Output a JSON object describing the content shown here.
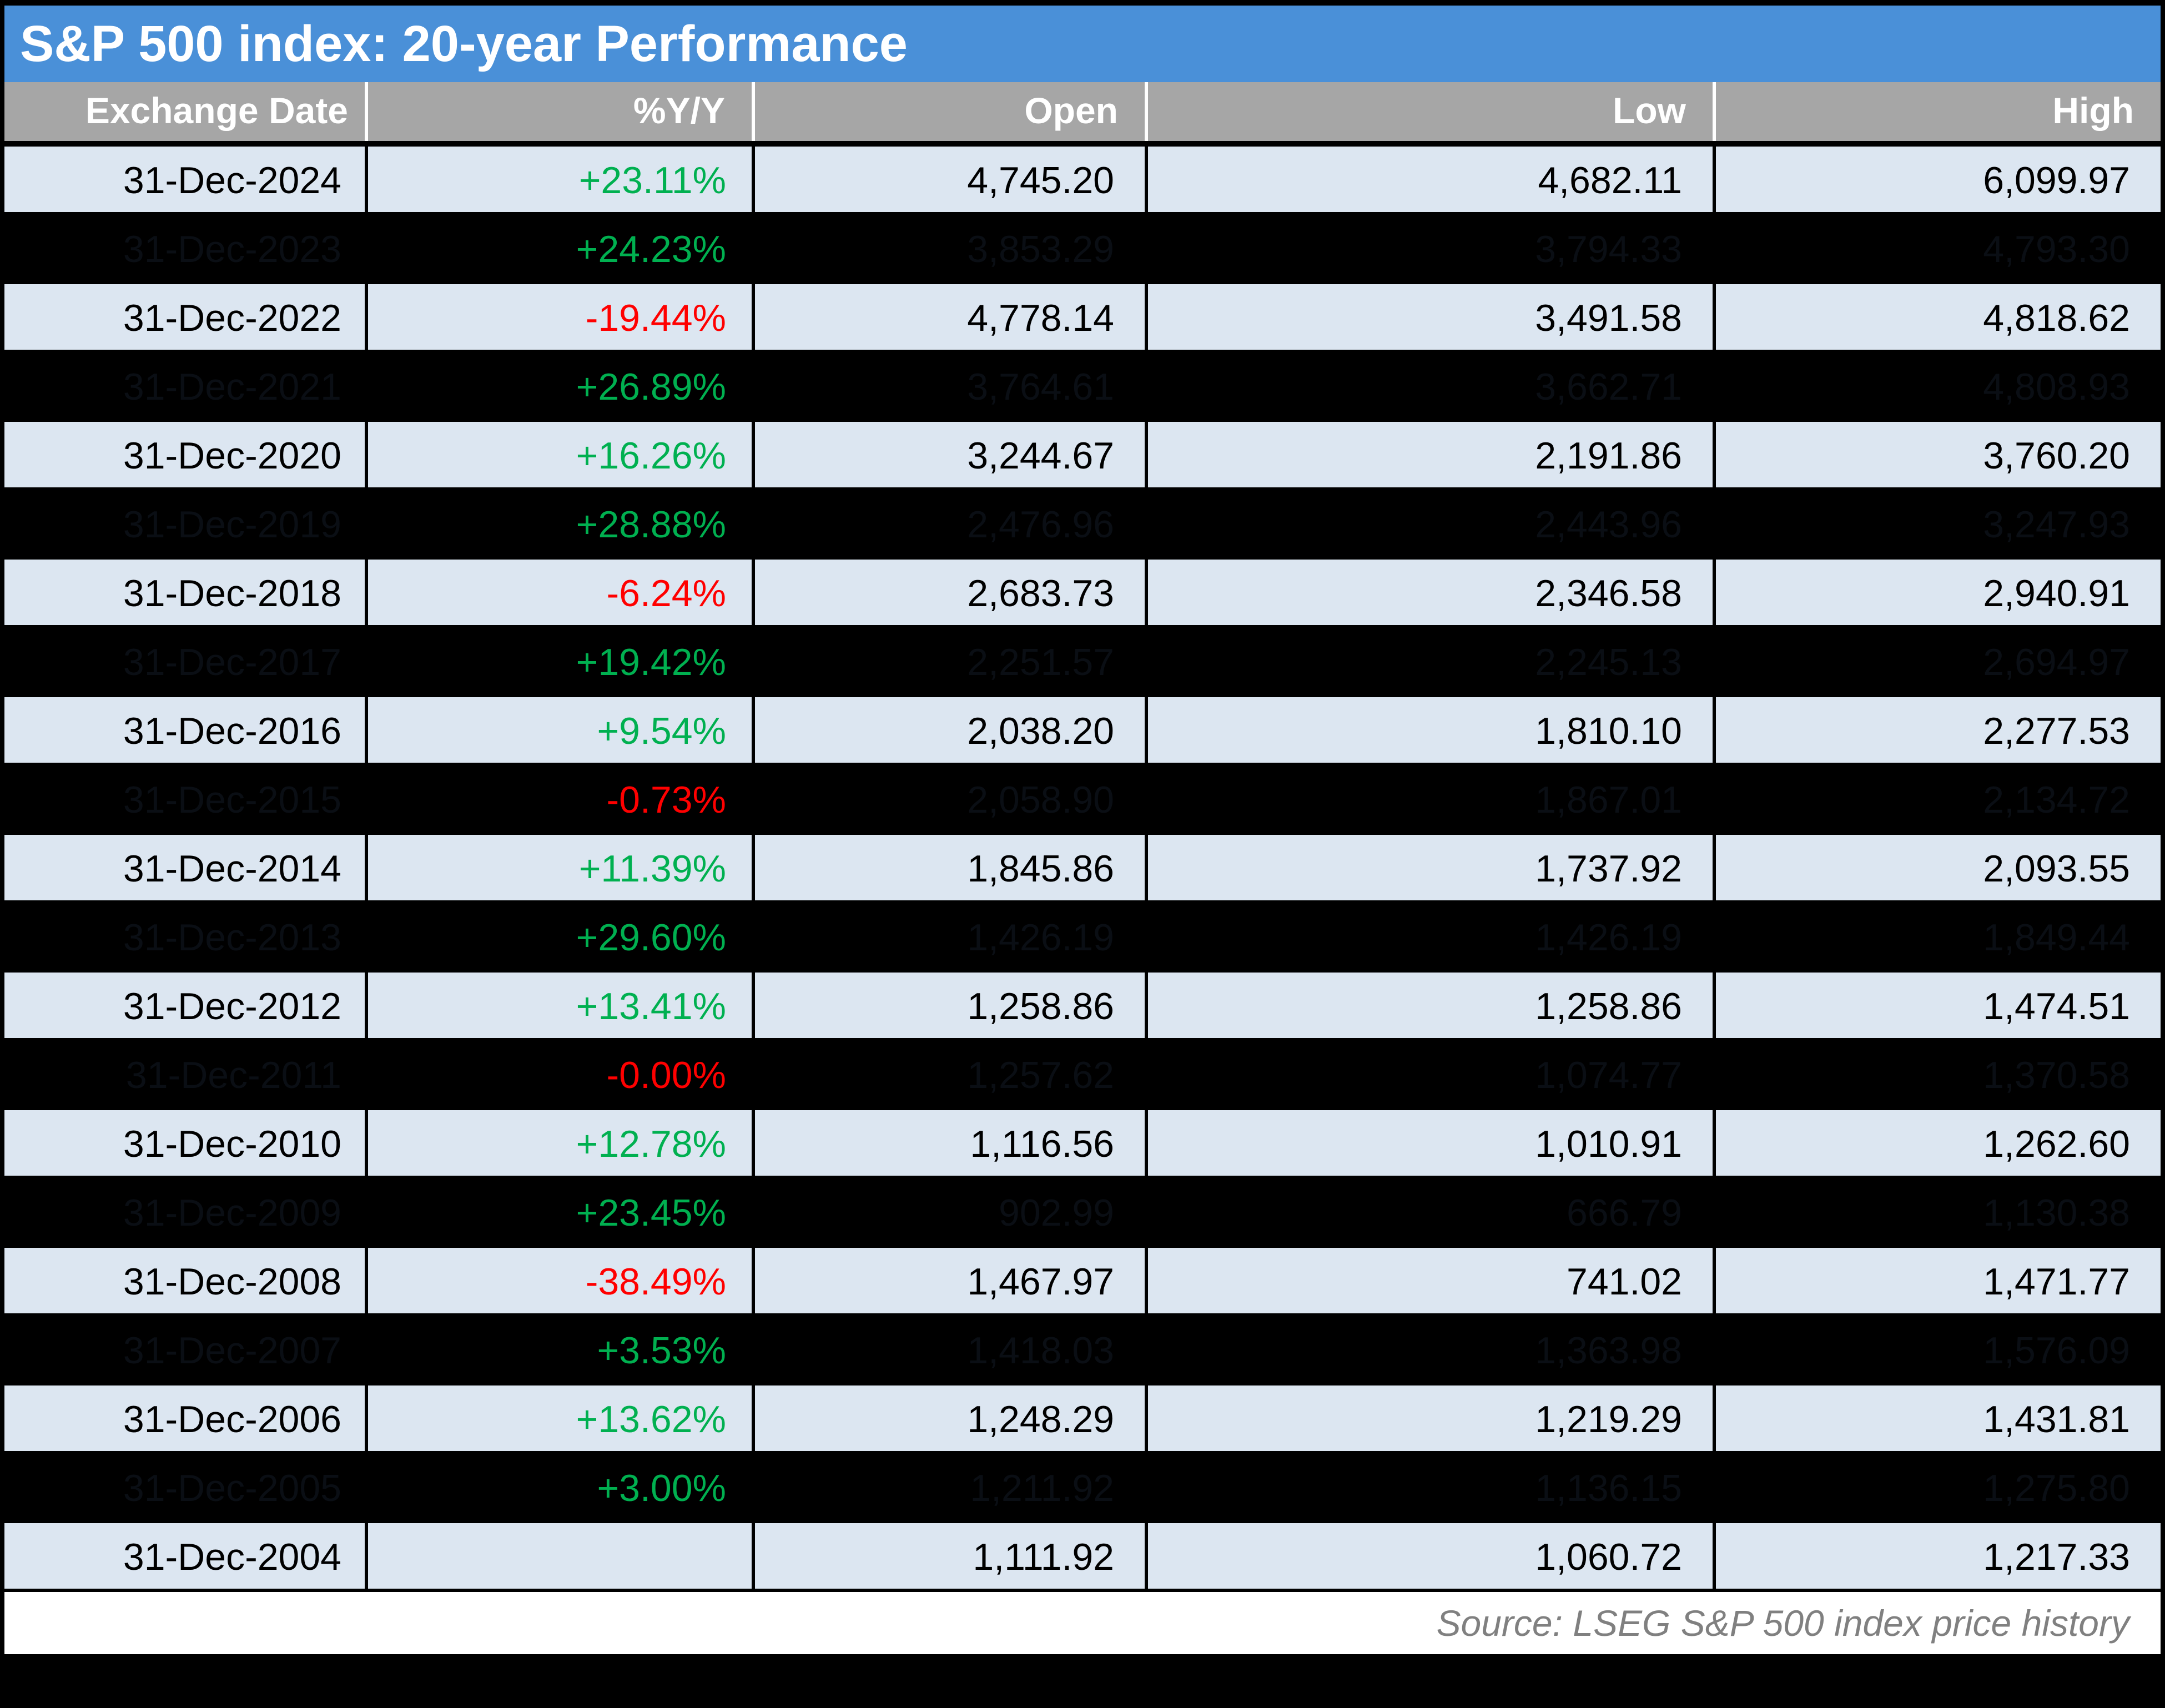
{
  "title": "S&P 500 index: 20-year Performance",
  "source_note": "Source: LSEG S&P 500 index price history",
  "colors": {
    "title_bar": "#4a90d8",
    "header_bg": "#a6a6a6",
    "row_light_bg": "#dce6f1",
    "row_dark_bg": "#000000",
    "positive": "#00b050",
    "negative": "#ff0000",
    "hidden_text": "#0a0e14",
    "source_text": "#808080"
  },
  "chart_data": {
    "type": "table",
    "title": "S&P 500 index: 20-year Performance",
    "columns": [
      "Exchange Date",
      "%Y/Y",
      "Open",
      "Low",
      "High"
    ],
    "rows": [
      {
        "date": "31-Dec-2024",
        "yoy": "+23.11%",
        "open": "4,745.20",
        "low": "4,682.11",
        "high": "6,099.97",
        "hidden": false,
        "direction": "up"
      },
      {
        "date": "31-Dec-2023",
        "yoy": "+24.23%",
        "open": "3,853.29",
        "low": "3,794.33",
        "high": "4,793.30",
        "hidden": true,
        "direction": "up"
      },
      {
        "date": "31-Dec-2022",
        "yoy": "-19.44%",
        "open": "4,778.14",
        "low": "3,491.58",
        "high": "4,818.62",
        "hidden": false,
        "direction": "down"
      },
      {
        "date": "31-Dec-2021",
        "yoy": "+26.89%",
        "open": "3,764.61",
        "low": "3,662.71",
        "high": "4,808.93",
        "hidden": true,
        "direction": "up"
      },
      {
        "date": "31-Dec-2020",
        "yoy": "+16.26%",
        "open": "3,244.67",
        "low": "2,191.86",
        "high": "3,760.20",
        "hidden": false,
        "direction": "up"
      },
      {
        "date": "31-Dec-2019",
        "yoy": "+28.88%",
        "open": "2,476.96",
        "low": "2,443.96",
        "high": "3,247.93",
        "hidden": true,
        "direction": "up"
      },
      {
        "date": "31-Dec-2018",
        "yoy": "-6.24%",
        "open": "2,683.73",
        "low": "2,346.58",
        "high": "2,940.91",
        "hidden": false,
        "direction": "down"
      },
      {
        "date": "31-Dec-2017",
        "yoy": "+19.42%",
        "open": "2,251.57",
        "low": "2,245.13",
        "high": "2,694.97",
        "hidden": true,
        "direction": "up"
      },
      {
        "date": "31-Dec-2016",
        "yoy": "+9.54%",
        "open": "2,038.20",
        "low": "1,810.10",
        "high": "2,277.53",
        "hidden": false,
        "direction": "up"
      },
      {
        "date": "31-Dec-2015",
        "yoy": "-0.73%",
        "open": "2,058.90",
        "low": "1,867.01",
        "high": "2,134.72",
        "hidden": true,
        "direction": "down"
      },
      {
        "date": "31-Dec-2014",
        "yoy": "+11.39%",
        "open": "1,845.86",
        "low": "1,737.92",
        "high": "2,093.55",
        "hidden": false,
        "direction": "up"
      },
      {
        "date": "31-Dec-2013",
        "yoy": "+29.60%",
        "open": "1,426.19",
        "low": "1,426.19",
        "high": "1,849.44",
        "hidden": true,
        "direction": "up"
      },
      {
        "date": "31-Dec-2012",
        "yoy": "+13.41%",
        "open": "1,258.86",
        "low": "1,258.86",
        "high": "1,474.51",
        "hidden": false,
        "direction": "up"
      },
      {
        "date": "31-Dec-2011",
        "yoy": "-0.00%",
        "open": "1,257.62",
        "low": "1,074.77",
        "high": "1,370.58",
        "hidden": true,
        "direction": "down"
      },
      {
        "date": "31-Dec-2010",
        "yoy": "+12.78%",
        "open": "1,116.56",
        "low": "1,010.91",
        "high": "1,262.60",
        "hidden": false,
        "direction": "up"
      },
      {
        "date": "31-Dec-2009",
        "yoy": "+23.45%",
        "open": "902.99",
        "low": "666.79",
        "high": "1,130.38",
        "hidden": true,
        "direction": "up"
      },
      {
        "date": "31-Dec-2008",
        "yoy": "-38.49%",
        "open": "1,467.97",
        "low": "741.02",
        "high": "1,471.77",
        "hidden": false,
        "direction": "down"
      },
      {
        "date": "31-Dec-2007",
        "yoy": "+3.53%",
        "open": "1,418.03",
        "low": "1,363.98",
        "high": "1,576.09",
        "hidden": true,
        "direction": "up"
      },
      {
        "date": "31-Dec-2006",
        "yoy": "+13.62%",
        "open": "1,248.29",
        "low": "1,219.29",
        "high": "1,431.81",
        "hidden": false,
        "direction": "up"
      },
      {
        "date": "31-Dec-2005",
        "yoy": "+3.00%",
        "open": "1,211.92",
        "low": "1,136.15",
        "high": "1,275.80",
        "hidden": true,
        "direction": "up"
      },
      {
        "date": "31-Dec-2004",
        "yoy": "",
        "open": "1,111.92",
        "low": "1,060.72",
        "high": "1,217.33",
        "hidden": false,
        "direction": "none"
      }
    ]
  }
}
